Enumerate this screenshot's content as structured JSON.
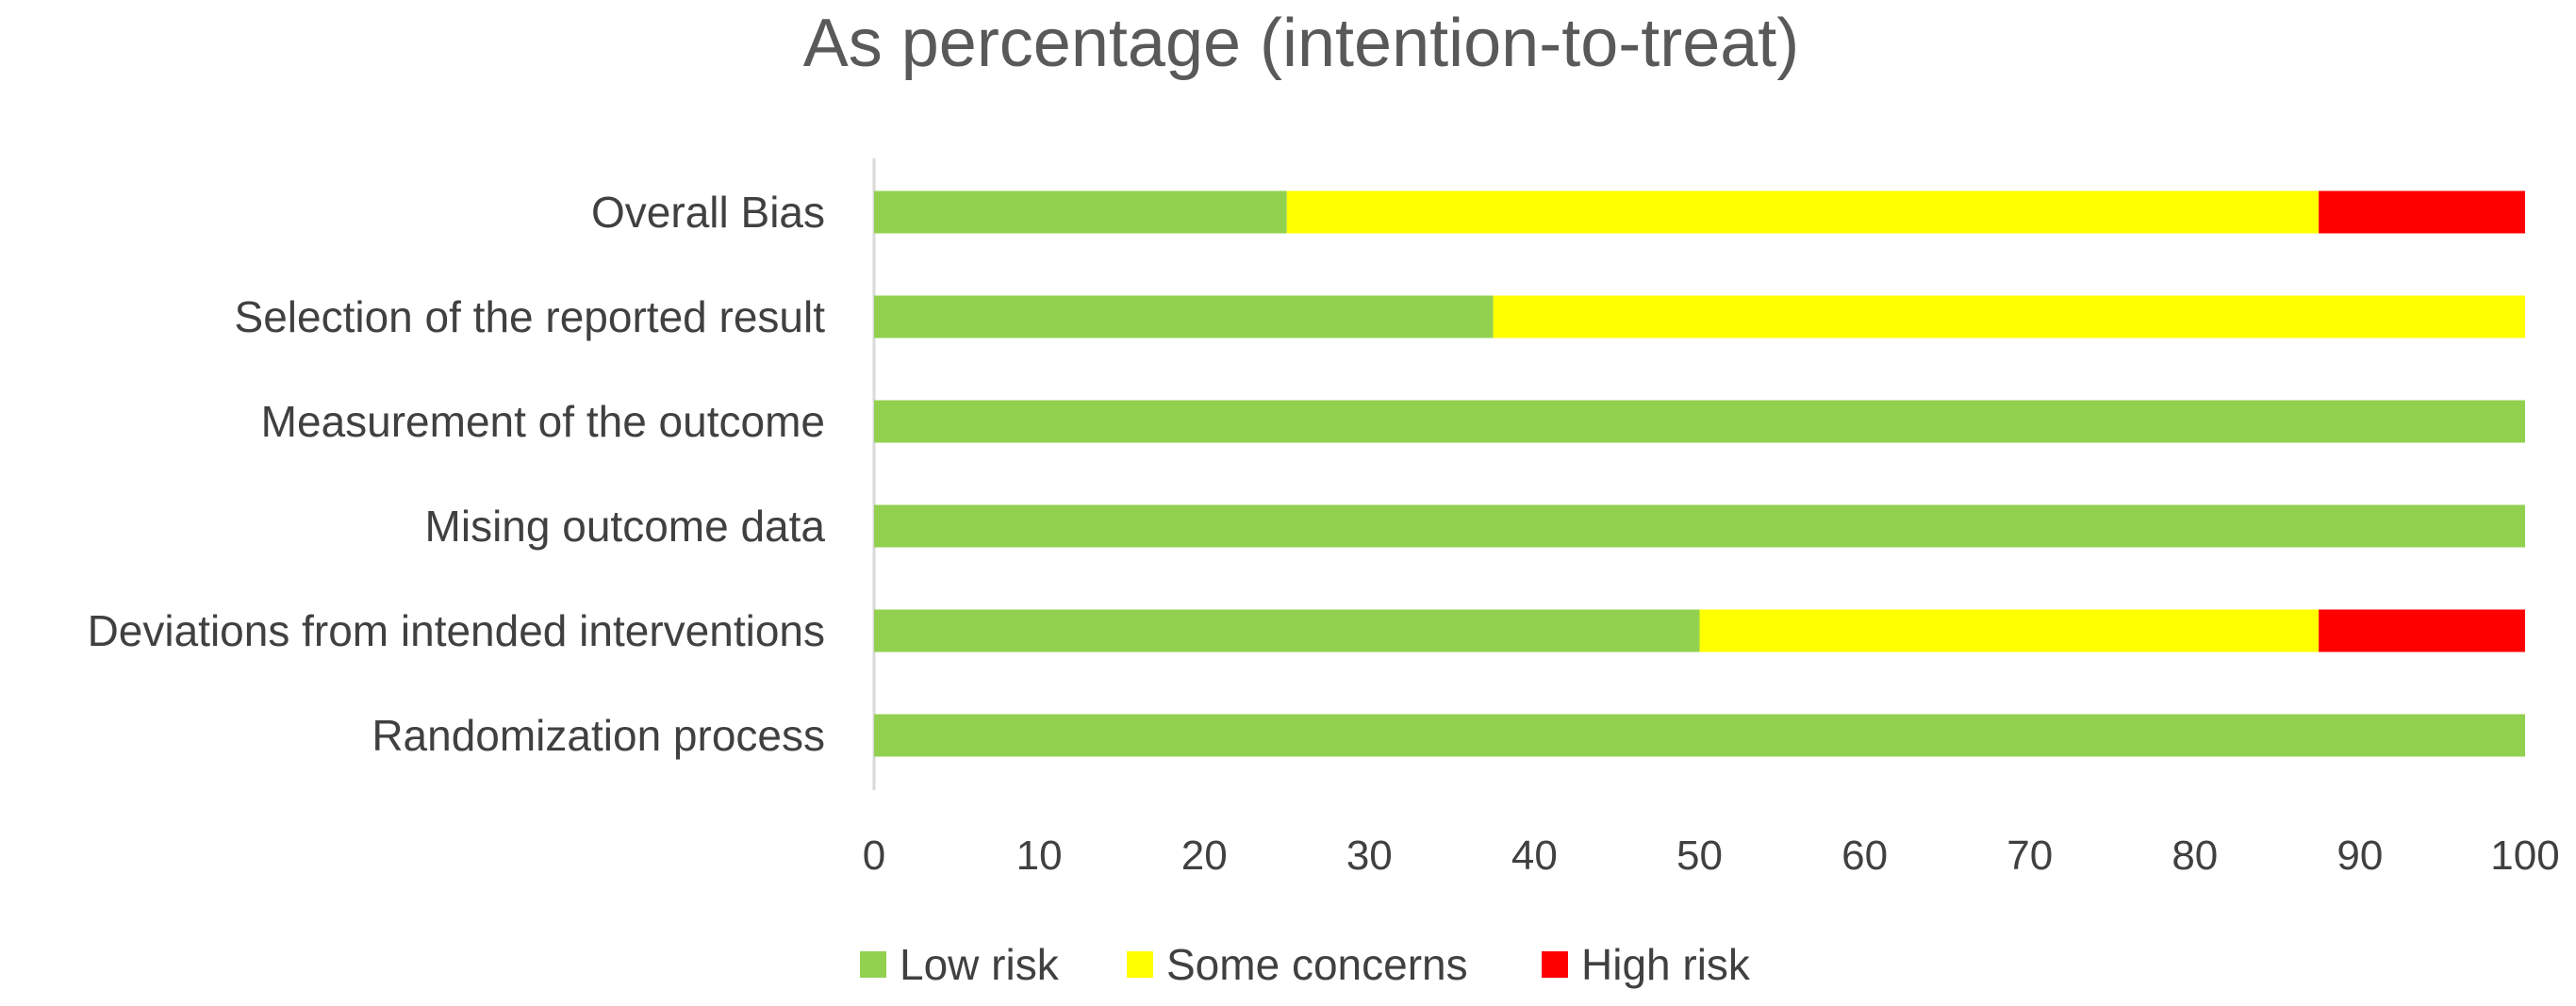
{
  "chart_data": {
    "type": "bar",
    "orientation": "horizontal",
    "stacked": true,
    "title": "As percentage (intention-to-treat)",
    "xlabel": "",
    "ylabel": "",
    "xlim": [
      0,
      100
    ],
    "x_ticks": [
      0,
      10,
      20,
      30,
      40,
      50,
      60,
      70,
      80,
      90,
      100
    ],
    "grid": false,
    "legend_position": "bottom",
    "categories": [
      "Overall Bias",
      "Selection of the reported result",
      "Measurement of the outcome",
      "Mising outcome data",
      "Deviations from intended interventions",
      "Randomization process"
    ],
    "series": [
      {
        "name": "Low risk",
        "color": "#92d050",
        "values": [
          25,
          37.5,
          100,
          100,
          50,
          100
        ]
      },
      {
        "name": "Some concerns",
        "color": "#ffff00",
        "values": [
          62.5,
          62.5,
          0,
          0,
          37.5,
          0
        ]
      },
      {
        "name": "High risk",
        "color": "#ff0000",
        "values": [
          12.5,
          0,
          0,
          0,
          12.5,
          0
        ]
      }
    ]
  }
}
